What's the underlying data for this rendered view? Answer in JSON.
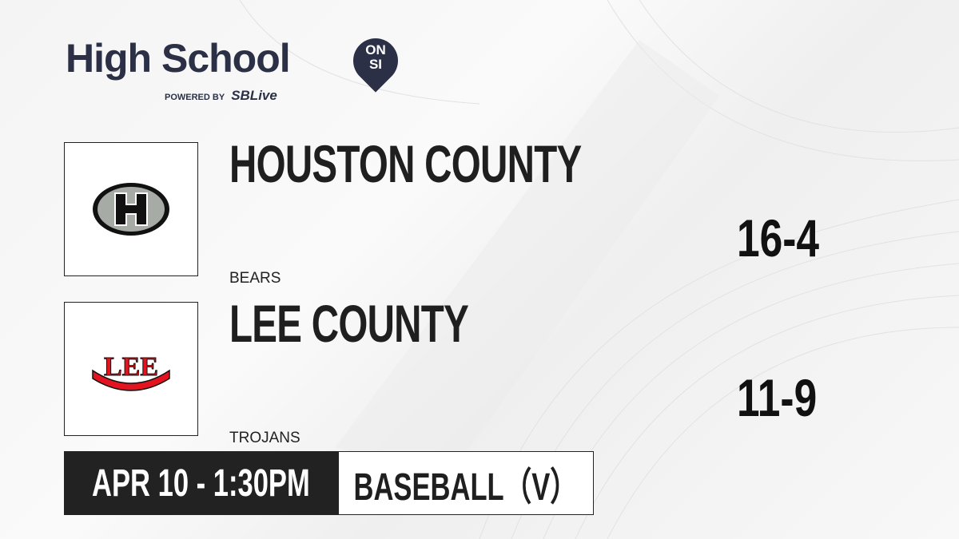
{
  "brand": {
    "title": "High School",
    "badge_line1": "ON",
    "badge_line2": "SI",
    "powered_by": "POWERED BY",
    "partner": "SBLive"
  },
  "teams": [
    {
      "name": "HOUSTON COUNTY",
      "mascot": "BEARS",
      "record": "16-4",
      "logo": "houston-county-h-logo"
    },
    {
      "name": "LEE COUNTY",
      "mascot": "TROJANS",
      "record": "11-9",
      "logo": "lee-county-logo"
    }
  ],
  "game": {
    "datetime": "APR 10 - 1:30PM",
    "sport": "BASEBALL（V）"
  },
  "colors": {
    "brand_navy": "#2b3046",
    "sblive_blue": "#1ea7e1",
    "lee_red": "#e3141f",
    "dark": "#222222"
  }
}
